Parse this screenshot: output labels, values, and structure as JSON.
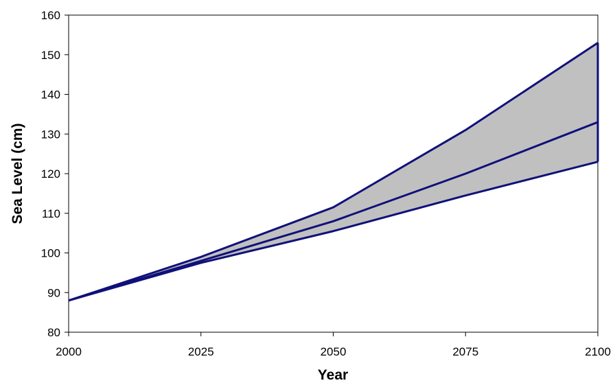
{
  "chart_data": {
    "type": "line",
    "title": "",
    "xlabel": "Year",
    "ylabel": "Sea Level (cm)",
    "xlim": [
      2000,
      2100
    ],
    "ylim": [
      80,
      160
    ],
    "x_ticks": [
      2000,
      2025,
      2050,
      2075,
      2100
    ],
    "y_ticks": [
      80,
      90,
      100,
      110,
      120,
      130,
      140,
      150,
      160
    ],
    "grid": false,
    "legend": "none",
    "x": [
      2000,
      2025,
      2050,
      2075,
      2100
    ],
    "series": [
      {
        "values": [
          88,
          99,
          111.5,
          131,
          153
        ]
      },
      {
        "values": [
          88,
          98,
          108,
          120,
          133
        ]
      },
      {
        "values": [
          88,
          97.5,
          105.5,
          114.5,
          123
        ]
      }
    ],
    "shaded_band": {
      "upper_series": 0,
      "lower_series": 2,
      "fill": "#c0c0c0"
    },
    "colors": {
      "line": "#10107a",
      "band": "#c0c0c0",
      "axis": "#000000"
    }
  }
}
